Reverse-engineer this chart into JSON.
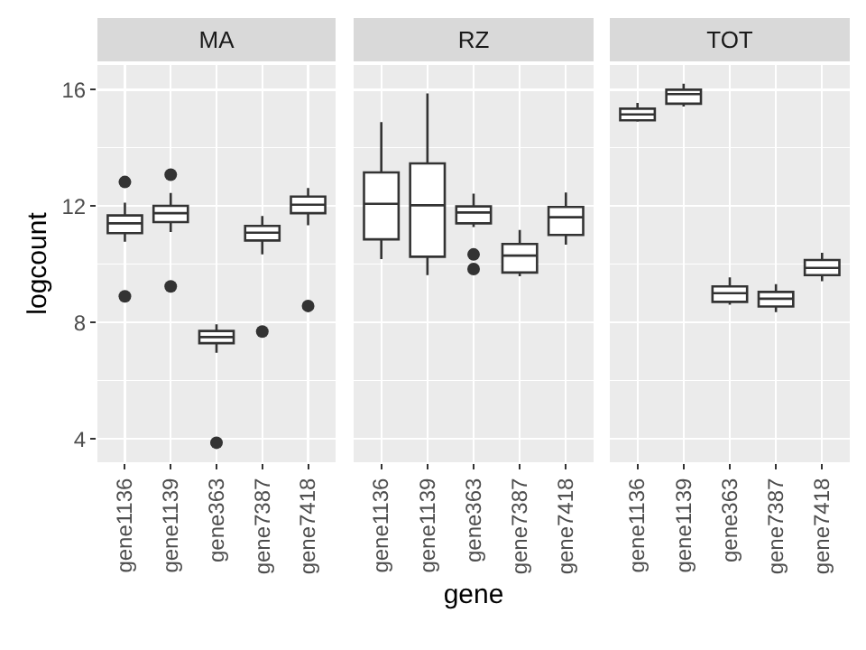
{
  "chart_data": [
    {
      "type": "box",
      "title": "MA",
      "ylabel": "logcount",
      "categories": [
        "gene1136",
        "gene1139",
        "gene363",
        "gene7387",
        "gene7418"
      ],
      "ylim": [
        3.2,
        16.85
      ],
      "yticks": [
        4,
        8,
        12,
        16
      ],
      "grid": true,
      "boxes": [
        {
          "low": 10.78,
          "q1": 11.07,
          "median": 11.41,
          "q3": 11.68,
          "high": 12.12,
          "outliers": [
            12.83,
            8.9
          ]
        },
        {
          "low": 11.11,
          "q1": 11.45,
          "median": 11.76,
          "q3": 12.01,
          "high": 12.45,
          "outliers": [
            13.08,
            9.24
          ]
        },
        {
          "low": 6.96,
          "q1": 7.29,
          "median": 7.5,
          "q3": 7.71,
          "high": 7.94,
          "outliers": [
            3.87
          ]
        },
        {
          "low": 10.34,
          "q1": 10.82,
          "median": 11.09,
          "q3": 11.32,
          "high": 11.66,
          "outliers": [
            7.69
          ]
        },
        {
          "low": 11.34,
          "q1": 11.76,
          "median": 12.05,
          "q3": 12.33,
          "high": 12.62,
          "outliers": [
            8.57
          ]
        }
      ]
    },
    {
      "type": "box",
      "title": "RZ",
      "xlabel": "gene",
      "categories": [
        "gene1136",
        "gene1139",
        "gene363",
        "gene7387",
        "gene7418"
      ],
      "ylim": [
        3.2,
        16.85
      ],
      "yticks": [
        4,
        8,
        12,
        16
      ],
      "grid": true,
      "tick_labels": "x",
      "boxes": [
        {
          "low": 10.18,
          "q1": 10.86,
          "median": 12.08,
          "q3": 13.16,
          "high": 14.89
        },
        {
          "low": 9.63,
          "q1": 10.26,
          "median": 12.03,
          "q3": 13.47,
          "high": 15.87
        },
        {
          "low": 11.28,
          "q1": 11.41,
          "median": 11.78,
          "q3": 11.99,
          "high": 12.43,
          "outliers": [
            10.34,
            9.84
          ]
        },
        {
          "low": 9.59,
          "q1": 9.72,
          "median": 10.3,
          "q3": 10.7,
          "high": 11.18
        },
        {
          "low": 10.68,
          "q1": 11.01,
          "median": 11.62,
          "q3": 11.97,
          "high": 12.47
        }
      ]
    },
    {
      "type": "box",
      "title": "TOT",
      "categories": [
        "gene1136",
        "gene1139",
        "gene363",
        "gene7387",
        "gene7418"
      ],
      "ylim": [
        3.2,
        16.85
      ],
      "yticks": [
        4,
        8,
        12,
        16
      ],
      "grid": true,
      "tick_labels": "x",
      "boxes": [
        {
          "low": 14.9,
          "q1": 14.95,
          "median": 15.15,
          "q3": 15.35,
          "high": 15.55
        },
        {
          "low": 15.42,
          "q1": 15.52,
          "median": 15.85,
          "q3": 16.0,
          "high": 16.21
        },
        {
          "low": 8.61,
          "q1": 8.71,
          "median": 9.01,
          "q3": 9.24,
          "high": 9.55
        },
        {
          "low": 8.36,
          "q1": 8.55,
          "median": 8.82,
          "q3": 9.05,
          "high": 9.32
        },
        {
          "low": 9.42,
          "q1": 9.63,
          "median": 9.88,
          "q3": 10.15,
          "high": 10.4
        }
      ]
    }
  ]
}
